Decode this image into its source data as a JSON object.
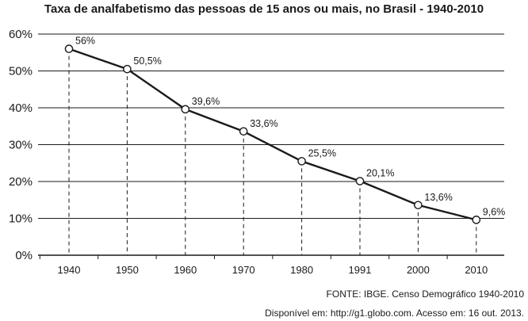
{
  "chart_data": {
    "type": "line",
    "title": "Taxa de analfabetismo das pessoas de 15 anos ou mais, no Brasil - 1940-2010",
    "xlabel": "",
    "ylabel": "",
    "x": [
      "1940",
      "1950",
      "1960",
      "1970",
      "1980",
      "1991",
      "2000",
      "2010"
    ],
    "series": [
      {
        "values": [
          56,
          50.5,
          39.6,
          33.6,
          25.5,
          20.1,
          13.6,
          9.6
        ],
        "data_labels": [
          "56%",
          "50,5%",
          "39,6%",
          "33,6%",
          "25,5%",
          "20,1%",
          "13,6%",
          "9,6%"
        ]
      }
    ],
    "ylim": [
      0,
      60
    ],
    "y_ticks": [
      0,
      10,
      20,
      30,
      40,
      50,
      60
    ],
    "y_tick_labels": [
      "0%",
      "10%",
      "20%",
      "30%",
      "40%",
      "50%",
      "60%"
    ],
    "grid": true,
    "line_color": "#1a1a1a",
    "grid_color": "#1a1a1a",
    "marker_fill": "#ffffff"
  },
  "source": {
    "line1": "FONTE: IBGE. Censo Demográfico 1940-2010",
    "line2": "Disponível em: http://g1.globo.com. Acesso em: 16 out. 2013."
  }
}
